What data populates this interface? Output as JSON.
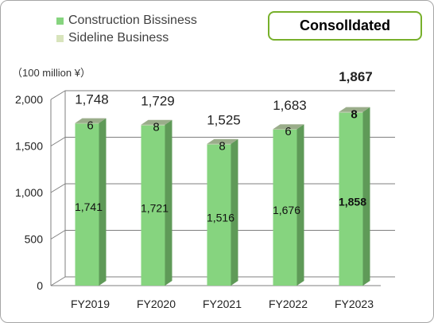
{
  "badge": "Consolldated",
  "unit_label": "（100 million ¥）",
  "colors": {
    "construction": "#86d47f",
    "construction_side": "#5f9a58",
    "sideline": "#b7c9a6",
    "sideline_top": "#9aad8a",
    "highlight": "#ff0000",
    "grid": "#7f7f7f"
  },
  "chart_data": {
    "type": "bar",
    "stacked": true,
    "categories": [
      "FY2019",
      "FY2020",
      "FY2021",
      "FY2022",
      "FY2023"
    ],
    "series": [
      {
        "name": "Construction Bissiness",
        "values": [
          1741,
          1721,
          1516,
          1676,
          1858
        ],
        "labels": [
          "1,741",
          "1,721",
          "1,516",
          "1,676",
          "1,858"
        ]
      },
      {
        "name": "Sideline Business",
        "values": [
          6,
          8,
          8,
          6,
          8
        ],
        "labels": [
          "6",
          "8",
          "8",
          "6",
          "8"
        ]
      }
    ],
    "totals": [
      "1,748",
      "1,729",
      "1,525",
      "1,683",
      "1,867"
    ],
    "y_ticks": [
      "0",
      "500",
      "1,000",
      "1,500",
      "2,000"
    ],
    "ylim": [
      0,
      2000
    ],
    "legend_position": "top-left",
    "grid": true,
    "highlight_category": "FY2023"
  }
}
